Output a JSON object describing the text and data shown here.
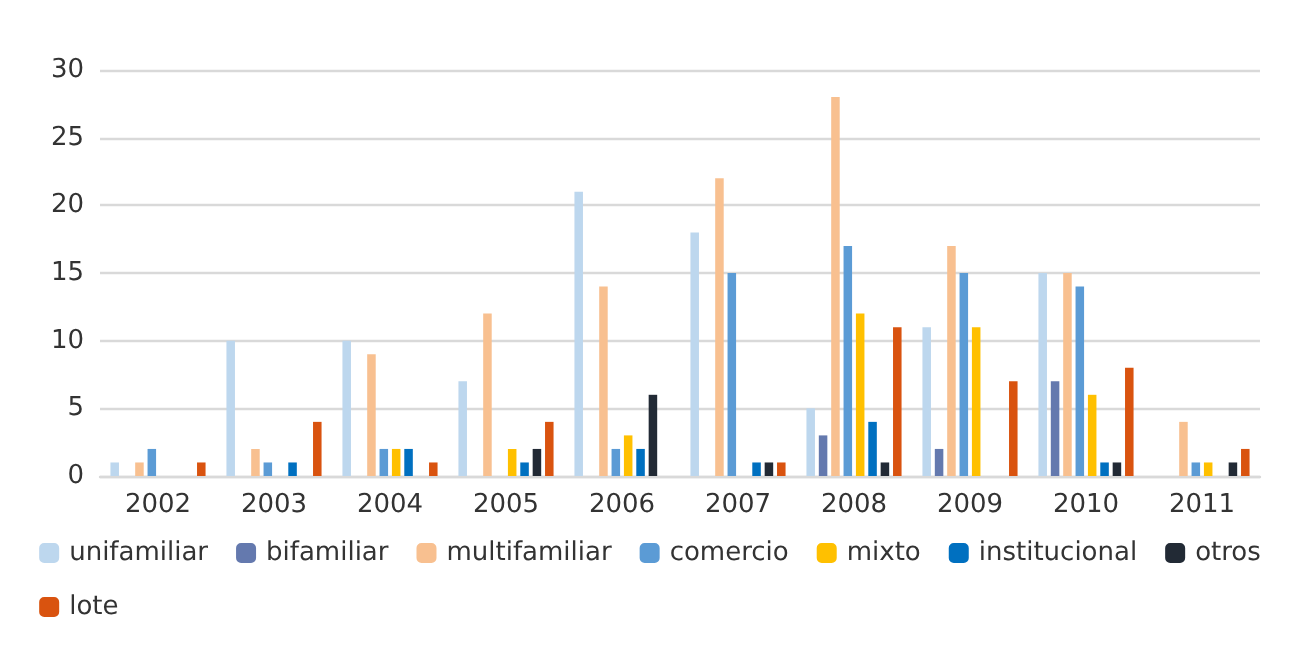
{
  "chart_data": {
    "type": "bar",
    "categories": [
      "2002",
      "2003",
      "2004",
      "2005",
      "2006",
      "2007",
      "2008",
      "2009",
      "2010",
      "2011"
    ],
    "series": [
      {
        "name": "unifamiliar",
        "color": "#bdd7ee",
        "values": [
          1,
          10,
          10,
          7,
          21,
          18,
          5,
          11,
          15,
          0
        ]
      },
      {
        "name": "bifamiliar",
        "color": "#6479ae",
        "values": [
          0,
          0,
          0,
          0,
          0,
          0,
          3,
          2,
          7,
          0
        ]
      },
      {
        "name": "multifamiliar",
        "color": "#f8c090",
        "values": [
          1,
          2,
          9,
          12,
          14,
          22,
          28,
          17,
          15,
          4
        ]
      },
      {
        "name": "comercio",
        "color": "#5b9bd5",
        "values": [
          2,
          1,
          2,
          0,
          2,
          15,
          17,
          15,
          14,
          1
        ]
      },
      {
        "name": "mixto",
        "color": "#ffc000",
        "values": [
          0,
          0,
          2,
          2,
          3,
          0,
          12,
          11,
          6,
          1
        ]
      },
      {
        "name": "institucional",
        "color": "#0070c0",
        "values": [
          0,
          1,
          2,
          1,
          2,
          1,
          4,
          0,
          1,
          0
        ]
      },
      {
        "name": "otros",
        "color": "#222a35",
        "values": [
          0,
          0,
          0,
          2,
          6,
          1,
          1,
          0,
          1,
          1
        ]
      },
      {
        "name": "lote",
        "color": "#d9530f",
        "values": [
          1,
          4,
          1,
          4,
          0,
          1,
          11,
          7,
          8,
          2
        ]
      }
    ],
    "ylim": [
      0,
      30
    ],
    "yticks": [
      0,
      5,
      10,
      15,
      20,
      25,
      30
    ],
    "grid": "y",
    "legend": "bottom"
  }
}
